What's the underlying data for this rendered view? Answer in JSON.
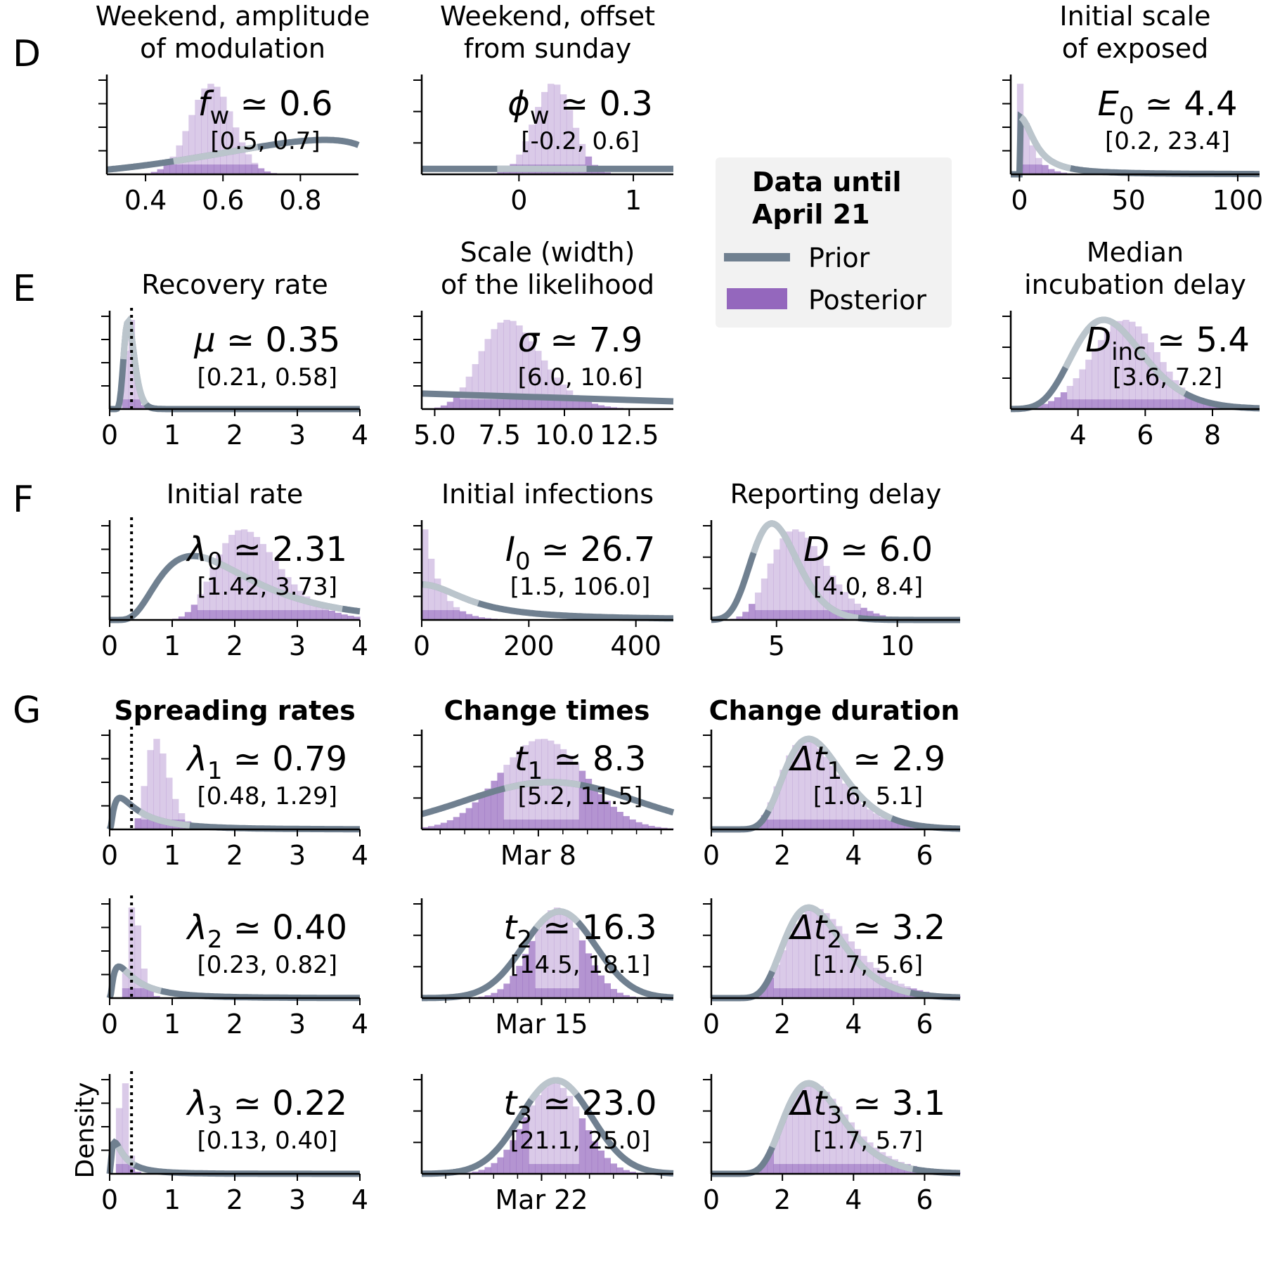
{
  "colors": {
    "prior": "#708090",
    "posterior": "#9467bd"
  },
  "panel_letters": [
    "D",
    "E",
    "F",
    "G"
  ],
  "legend": {
    "title_line1": "Data until",
    "title_line2": "April 21",
    "prior_label": "Prior",
    "posterior_label": "Posterior"
  },
  "row_headers": {
    "spreading": "Spreading rates",
    "change_times": "Change times",
    "change_duration": "Change duration"
  },
  "ylabel_density": "Density",
  "chart_data": [
    {
      "id": "fw",
      "type": "histogram",
      "title_line1": "Weekend, amplitude",
      "title_line2": "of modulation",
      "annot_main": "f_w ≃ 0.6",
      "annot_ci": "[0.5, 0.7]",
      "xlim": [
        0.3,
        0.95
      ],
      "xticks": [
        0.4,
        0.6,
        0.8
      ],
      "xticklabels": [
        "0.4",
        "0.6",
        "0.8"
      ],
      "prior": {
        "kind": "beta",
        "a": 3.5,
        "b": 1.4,
        "lo": 0.0,
        "hi": 1.0
      },
      "posterior": {
        "mean": 0.57,
        "sd": 0.055
      },
      "hl": [
        0.47,
        0.69
      ],
      "ymax": 1.15,
      "ref_line": null
    },
    {
      "id": "phi",
      "type": "histogram",
      "title_line1": "Weekend, offset",
      "title_line2": "from sunday",
      "annot_main": "ϕ_w ≃ 0.3",
      "annot_ci": "[-0.2, 0.6]",
      "xlim": [
        -0.85,
        1.35
      ],
      "xticks": [
        0,
        1
      ],
      "xticklabels": [
        "0",
        "1"
      ],
      "prior": {
        "kind": "flat",
        "level": 0.055
      },
      "posterior": {
        "mean": 0.3,
        "sd": 0.17
      },
      "hl": [
        -0.2,
        0.6
      ],
      "ymax": 1.15,
      "ref_line": null
    },
    {
      "id": "e0",
      "type": "histogram",
      "title_line1": "Initial scale",
      "title_line2": "of exposed",
      "annot_main": "E_0 ≃ 4.4",
      "annot_ci": "[0.2, 23.4]",
      "xlim": [
        -4,
        110
      ],
      "xticks": [
        0,
        50,
        100
      ],
      "xticklabels": [
        "0",
        "50",
        "100"
      ],
      "prior": {
        "kind": "halfcauchy",
        "scale": 8,
        "amp": 0.58
      },
      "posterior": {
        "kind": "exp",
        "mean": 5.0
      },
      "hl": [
        0.2,
        23.4
      ],
      "ymax": 1.15,
      "ref_line": null
    },
    {
      "id": "mu",
      "type": "histogram",
      "title_line1": "",
      "title_line2": "Recovery rate",
      "annot_main": "μ ≃ 0.35",
      "annot_ci": "[0.21, 0.58]",
      "xlim": [
        0,
        4
      ],
      "xticks": [
        0,
        1,
        2,
        3,
        4
      ],
      "xticklabels": [
        "0",
        "1",
        "2",
        "3",
        "4"
      ],
      "prior": {
        "kind": "lognorm",
        "median": 0.32,
        "sigma": 0.28
      },
      "posterior": {
        "kind": "lognorm",
        "median": 0.33,
        "sigma": 0.22
      },
      "hl": [
        0.21,
        0.58
      ],
      "ymax": 1.1,
      "ref_line": 0.35
    },
    {
      "id": "sigma",
      "type": "histogram",
      "title_line1": "Scale (width)",
      "title_line2": "of the likelihood",
      "annot_main": "σ ≃ 7.9",
      "annot_ci": "[6.0, 10.6]",
      "xlim": [
        4.5,
        14.2
      ],
      "xticks": [
        5,
        7.5,
        10,
        12.5
      ],
      "xticklabels": [
        "5.0",
        "7.5",
        "10.0",
        "12.5"
      ],
      "prior": {
        "kind": "halfcauchy_line",
        "y0": 0.16,
        "y1": 0.08
      },
      "posterior": {
        "kind": "lognorm",
        "median": 8.0,
        "sigma": 0.15
      },
      "hl": [
        6.0,
        10.6
      ],
      "ymax": 1.15,
      "ref_line": null
    },
    {
      "id": "dinc",
      "type": "histogram",
      "title_line1": "Median",
      "title_line2": "incubation delay",
      "annot_main": "D_inc ≃ 5.4",
      "annot_ci": "[3.6, 7.2]",
      "xlim": [
        2,
        9.4
      ],
      "xticks": [
        4,
        6,
        8
      ],
      "xticklabels": [
        "4",
        "6",
        "8"
      ],
      "prior": {
        "kind": "lognorm",
        "median": 5.0,
        "sigma": 0.22
      },
      "posterior": {
        "kind": "normal",
        "mean": 5.4,
        "sd": 1.0
      },
      "hl": [
        3.6,
        7.2
      ],
      "ymax": 1.15,
      "ref_line": null
    },
    {
      "id": "lam0",
      "type": "histogram",
      "title_line1": "",
      "title_line2": "Initial rate",
      "annot_main": "λ_0 ≃ 2.31",
      "annot_ci": "[1.42, 3.73]",
      "xlim": [
        0,
        4
      ],
      "xticks": [
        0,
        1,
        2,
        3,
        4
      ],
      "xticklabels": [
        "0",
        "1",
        "2",
        "3",
        "4"
      ],
      "prior": {
        "kind": "lognorm",
        "median": 1.8,
        "sigma": 0.55
      },
      "posterior": {
        "kind": "lognorm",
        "median": 2.25,
        "sigma": 0.24
      },
      "hl": [
        1.42,
        3.73
      ],
      "ymax": 1.15,
      "ref_line": 0.35
    },
    {
      "id": "i0",
      "type": "histogram",
      "title_line1": "",
      "title_line2": "Initial infections",
      "annot_main": "I_0 ≃ 26.7",
      "annot_ci": "[1.5, 106.0]",
      "xlim": [
        0,
        470
      ],
      "xticks": [
        0,
        200,
        400
      ],
      "xticklabels": [
        "0",
        "200",
        "400"
      ],
      "prior": {
        "kind": "halfcauchy",
        "scale": 100,
        "amp": 0.36
      },
      "posterior": {
        "kind": "exp",
        "mean": 30
      },
      "hl": [
        1.5,
        106.0
      ],
      "ymax": 1.15,
      "ref_line": null
    },
    {
      "id": "repd",
      "type": "histogram",
      "title_line1": "",
      "title_line2": "Reporting delay",
      "annot_main": "D ≃ 6.0",
      "annot_ci": "[4.0, 8.4]",
      "xlim": [
        2.3,
        12.6
      ],
      "xticks": [
        5,
        10
      ],
      "xticklabels": [
        "5",
        "10"
      ],
      "prior": {
        "kind": "lognorm",
        "median": 5.0,
        "sigma": 0.2
      },
      "posterior": {
        "kind": "lognorm",
        "median": 6.0,
        "sigma": 0.2
      },
      "hl": [
        4.0,
        8.4
      ],
      "ymax": 1.15,
      "ref_line": null
    },
    {
      "id": "lam1",
      "type": "histogram",
      "annot_main": "λ_1 ≃ 0.79",
      "annot_ci": "[0.48, 1.29]",
      "xlim": [
        0,
        4
      ],
      "xticks": [
        0,
        1,
        2,
        3,
        4
      ],
      "xticklabels": [
        "0",
        "1",
        "2",
        "3",
        "4"
      ],
      "prior": {
        "kind": "lognorm",
        "median": 0.45,
        "sigma": 1.0
      },
      "posterior": {
        "kind": "lognorm",
        "median": 0.78,
        "sigma": 0.24
      },
      "hl": [
        0.48,
        1.29
      ],
      "ymax": 1.1,
      "ref_line": 0.35
    },
    {
      "id": "t1",
      "type": "histogram",
      "annot_main": "t_1 ≃ 8.3",
      "annot_ci": "[5.2, 11.5]",
      "xlim": [
        -1.5,
        19
      ],
      "xticks": [
        8
      ],
      "xticklabels": [
        "Mar 8"
      ],
      "minor_ticks": [
        0,
        2,
        4,
        6,
        10,
        12,
        14,
        16,
        18
      ],
      "prior": {
        "kind": "normal",
        "mean": 9,
        "sd": 7,
        "amp": 0.48
      },
      "posterior": {
        "kind": "normal",
        "mean": 8.3,
        "sd": 3.5
      },
      "hl": [
        5.2,
        11.5
      ],
      "ymax": 1.15,
      "ref_line": null
    },
    {
      "id": "dt1",
      "type": "histogram",
      "annot_main": "Δt_1 ≃ 2.9",
      "annot_ci": "[1.6, 5.1]",
      "xlim": [
        0,
        7
      ],
      "xticks": [
        0,
        2,
        4,
        6
      ],
      "xticklabels": [
        "0",
        "2",
        "4",
        "6"
      ],
      "prior": {
        "kind": "lognorm",
        "median": 3.0,
        "sigma": 0.3
      },
      "posterior": {
        "kind": "lognorm",
        "median": 2.9,
        "sigma": 0.3
      },
      "hl": [
        1.6,
        5.1
      ],
      "ymax": 1.1,
      "ref_line": null
    },
    {
      "id": "lam2",
      "type": "histogram",
      "annot_main": "λ_2 ≃ 0.40",
      "annot_ci": "[0.23, 0.82]",
      "xlim": [
        0,
        4
      ],
      "xticks": [
        0,
        1,
        2,
        3,
        4
      ],
      "xticklabels": [
        "0",
        "1",
        "2",
        "3",
        "4"
      ],
      "prior": {
        "kind": "lognorm",
        "median": 0.4,
        "sigma": 1.0
      },
      "posterior": {
        "kind": "lognorm",
        "median": 0.4,
        "sigma": 0.25
      },
      "hl": [
        0.23,
        0.82
      ],
      "ymax": 1.1,
      "ref_line": 0.35
    },
    {
      "id": "t2",
      "type": "histogram",
      "annot_main": "t_2 ≃ 16.3",
      "annot_ci": "[14.5, 18.1]",
      "xlim": [
        5,
        26
      ],
      "xticks": [
        15
      ],
      "xticklabels": [
        "Mar 15"
      ],
      "minor_ticks": [
        7,
        9,
        11,
        13,
        17,
        19,
        21,
        23,
        25
      ],
      "prior": {
        "kind": "normal",
        "mean": 16.5,
        "sd": 3.0,
        "amp": 0.88
      },
      "posterior": {
        "kind": "normal",
        "mean": 16.3,
        "sd": 2.2
      },
      "hl": [
        14.5,
        18.1
      ],
      "ymax": 1.15,
      "ref_line": null
    },
    {
      "id": "dt2",
      "type": "histogram",
      "annot_main": "Δt_2 ≃ 3.2",
      "annot_ci": "[1.7, 5.6]",
      "xlim": [
        0,
        7
      ],
      "xticks": [
        0,
        2,
        4,
        6
      ],
      "xticklabels": [
        "0",
        "2",
        "4",
        "6"
      ],
      "prior": {
        "kind": "lognorm",
        "median": 3.0,
        "sigma": 0.3
      },
      "posterior": {
        "kind": "lognorm",
        "median": 3.2,
        "sigma": 0.32
      },
      "hl": [
        1.7,
        5.6
      ],
      "ymax": 1.1,
      "ref_line": null
    },
    {
      "id": "lam3",
      "type": "histogram",
      "annot_main": "λ_3 ≃ 0.22",
      "annot_ci": "[0.13, 0.40]",
      "xlim": [
        0,
        4
      ],
      "xticks": [
        0,
        1,
        2,
        3,
        4
      ],
      "xticklabels": [
        "0",
        "1",
        "2",
        "3",
        "4"
      ],
      "prior": {
        "kind": "lognorm",
        "median": 0.22,
        "sigma": 1.0
      },
      "posterior": {
        "kind": "lognorm",
        "median": 0.22,
        "sigma": 0.28
      },
      "hl": [
        0.13,
        0.4
      ],
      "ymax": 1.1,
      "ref_line": 0.35
    },
    {
      "id": "t3",
      "type": "histogram",
      "annot_main": "t_3 ≃ 23.0",
      "annot_ci": "[21.1, 25.0]",
      "xlim": [
        12,
        33
      ],
      "xticks": [
        22
      ],
      "xticklabels": [
        "Mar 22"
      ],
      "minor_ticks": [
        14,
        16,
        18,
        20,
        24,
        26,
        28,
        30,
        32
      ],
      "prior": {
        "kind": "normal",
        "mean": 23.2,
        "sd": 3.0,
        "amp": 0.95
      },
      "posterior": {
        "kind": "normal",
        "mean": 23.0,
        "sd": 2.4
      },
      "hl": [
        21.1,
        25.0
      ],
      "ymax": 1.15,
      "ref_line": null
    },
    {
      "id": "dt3",
      "type": "histogram",
      "annot_main": "Δt_3 ≃ 3.1",
      "annot_ci": "[1.7, 5.7]",
      "xlim": [
        0,
        7
      ],
      "xticks": [
        0,
        2,
        4,
        6
      ],
      "xticklabels": [
        "0",
        "2",
        "4",
        "6"
      ],
      "prior": {
        "kind": "lognorm",
        "median": 3.0,
        "sigma": 0.3
      },
      "posterior": {
        "kind": "lognorm",
        "median": 3.1,
        "sigma": 0.32
      },
      "hl": [
        1.7,
        5.7
      ],
      "ymax": 1.1,
      "ref_line": null
    }
  ]
}
